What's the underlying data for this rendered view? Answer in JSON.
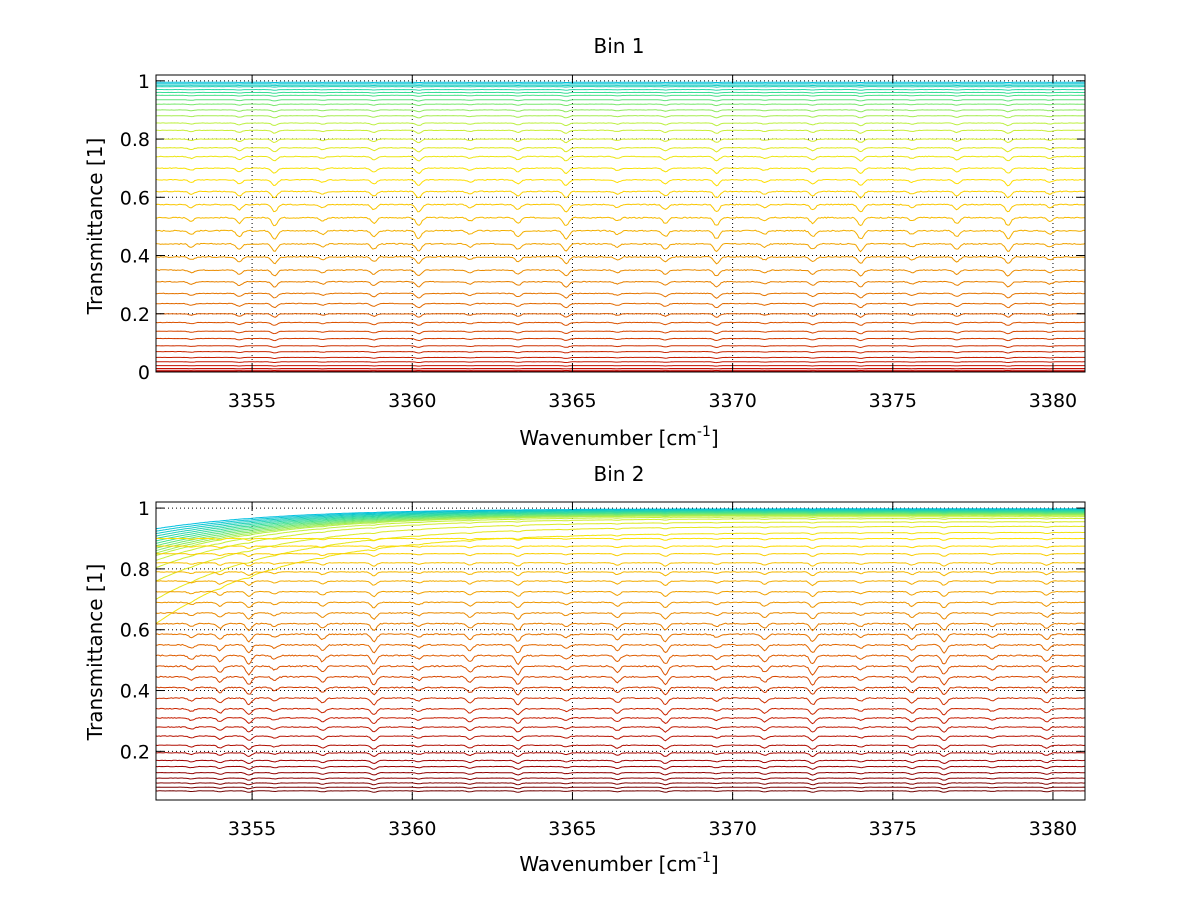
{
  "chart_data": [
    {
      "type": "line",
      "title": "Bin 1",
      "xlabel": "Wavenumber [cm",
      "xlabel_sup": "-1",
      "xlabel_end": "]",
      "ylabel": "Transmittance [1]",
      "xlim": [
        3352,
        3381
      ],
      "ylim": [
        0,
        1.02
      ],
      "xticks": [
        3355,
        3360,
        3365,
        3370,
        3375,
        3380
      ],
      "xtick_labels": [
        "3355",
        "3360",
        "3365",
        "3370",
        "3375",
        "3380"
      ],
      "yticks": [
        0,
        0.2,
        0.4,
        0.6,
        0.8,
        1
      ],
      "ytick_labels": [
        "0",
        "0.2",
        "0.4",
        "0.6",
        "0.8",
        "1"
      ],
      "grid": true,
      "colormap": [
        "#00c0e0",
        "#40e090",
        "#c0f040",
        "#ffe000",
        "#f0a000",
        "#e06000",
        "#c82000",
        "#c00000"
      ],
      "absorption_lines_cm1": [
        3353.1,
        3354.6,
        3355.7,
        3357.2,
        3358.8,
        3360.2,
        3361.8,
        3363.3,
        3364.8,
        3366.4,
        3367.9,
        3369.5,
        3371.0,
        3372.5,
        3374.0,
        3375.6,
        3377.0,
        3378.6,
        3379.9
      ],
      "series_baselines": [
        0.995,
        0.99,
        0.985,
        0.98,
        0.97,
        0.96,
        0.95,
        0.935,
        0.92,
        0.9,
        0.88,
        0.855,
        0.83,
        0.8,
        0.77,
        0.74,
        0.7,
        0.66,
        0.62,
        0.575,
        0.53,
        0.485,
        0.44,
        0.395,
        0.35,
        0.31,
        0.27,
        0.235,
        0.2,
        0.17,
        0.14,
        0.115,
        0.09,
        0.07,
        0.05,
        0.035,
        0.022,
        0.012,
        0.006,
        0.002
      ]
    },
    {
      "type": "line",
      "title": "Bin 2",
      "xlabel": "Wavenumber [cm",
      "xlabel_sup": "-1",
      "xlabel_end": "]",
      "ylabel": "Transmittance [1]",
      "xlim": [
        3352,
        3381
      ],
      "ylim": [
        0.04,
        1.02
      ],
      "xticks": [
        3355,
        3360,
        3365,
        3370,
        3375,
        3380
      ],
      "xtick_labels": [
        "3355",
        "3360",
        "3365",
        "3370",
        "3375",
        "3380"
      ],
      "yticks": [
        0.2,
        0.4,
        0.6,
        0.8,
        1
      ],
      "ytick_labels": [
        "0.2",
        "0.4",
        "0.6",
        "0.8",
        "1"
      ],
      "grid": true,
      "colormap": [
        "#00c0e0",
        "#40e090",
        "#c0f040",
        "#ffe000",
        "#f0a000",
        "#e06000",
        "#c82000",
        "#a00000",
        "#700000"
      ],
      "absorption_lines_cm1": [
        3353.1,
        3354.0,
        3354.9,
        3355.7,
        3357.2,
        3358.8,
        3360.2,
        3361.8,
        3363.3,
        3364.8,
        3366.4,
        3367.9,
        3369.5,
        3371.0,
        3372.5,
        3374.0,
        3375.6,
        3376.6,
        3378.1,
        3379.8
      ],
      "series_baselines": [
        0.998,
        0.996,
        0.994,
        0.992,
        0.99,
        0.988,
        0.986,
        0.984,
        0.982,
        0.98,
        0.978,
        0.976,
        0.972,
        0.966,
        0.955,
        0.94,
        0.92,
        0.9,
        0.875,
        0.85,
        0.82,
        0.79,
        0.76,
        0.725,
        0.69,
        0.655,
        0.62,
        0.585,
        0.55,
        0.515,
        0.48,
        0.445,
        0.41,
        0.375,
        0.34,
        0.31,
        0.28,
        0.25,
        0.22,
        0.195,
        0.17,
        0.15,
        0.13,
        0.112,
        0.096,
        0.082,
        0.07
      ]
    }
  ]
}
